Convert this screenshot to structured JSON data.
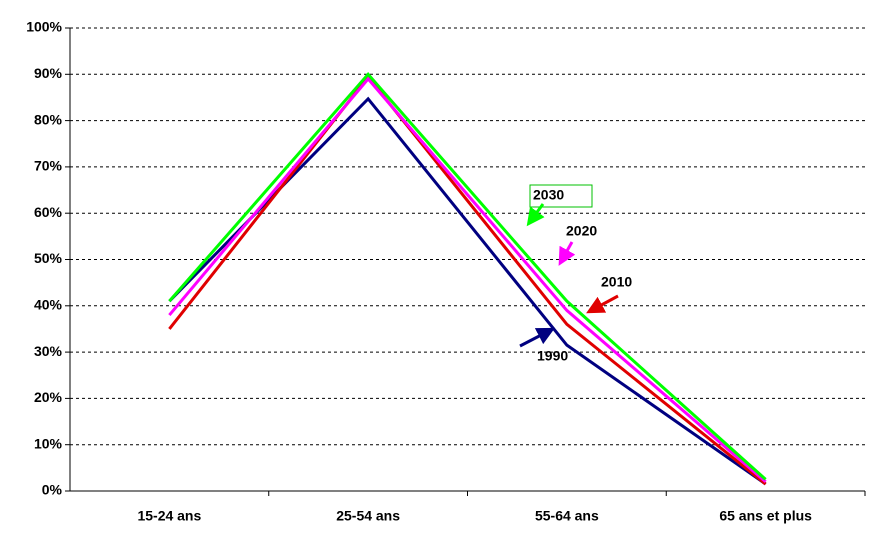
{
  "chart_data": {
    "type": "line",
    "categories": [
      "15-24 ans",
      "25-54 ans",
      "55-64 ans",
      "65 ans et plus"
    ],
    "series": [
      {
        "name": "1990",
        "color": "#000080",
        "values": [
          41,
          84.7,
          31.5,
          1.5
        ]
      },
      {
        "name": "2010",
        "color": "#e00000",
        "values": [
          35,
          89.4,
          36,
          1.5
        ]
      },
      {
        "name": "2020",
        "color": "#ff00ff",
        "values": [
          38,
          89,
          39,
          2
        ]
      },
      {
        "name": "2030",
        "color": "#00ff00",
        "values": [
          41,
          90,
          41,
          2.5
        ]
      }
    ],
    "ylim": [
      0,
      100
    ],
    "yticks": [
      {
        "value": 0,
        "label": "0%"
      },
      {
        "value": 10,
        "label": "10%"
      },
      {
        "value": 20,
        "label": "20%"
      },
      {
        "value": 30,
        "label": "30%"
      },
      {
        "value": 40,
        "label": "40%"
      },
      {
        "value": 50,
        "label": "50%"
      },
      {
        "value": 60,
        "label": "60%"
      },
      {
        "value": 70,
        "label": "70%"
      },
      {
        "value": 80,
        "label": "80%"
      },
      {
        "value": 90,
        "label": "90%"
      },
      {
        "value": 100,
        "label": "100%"
      }
    ],
    "grid": true
  }
}
